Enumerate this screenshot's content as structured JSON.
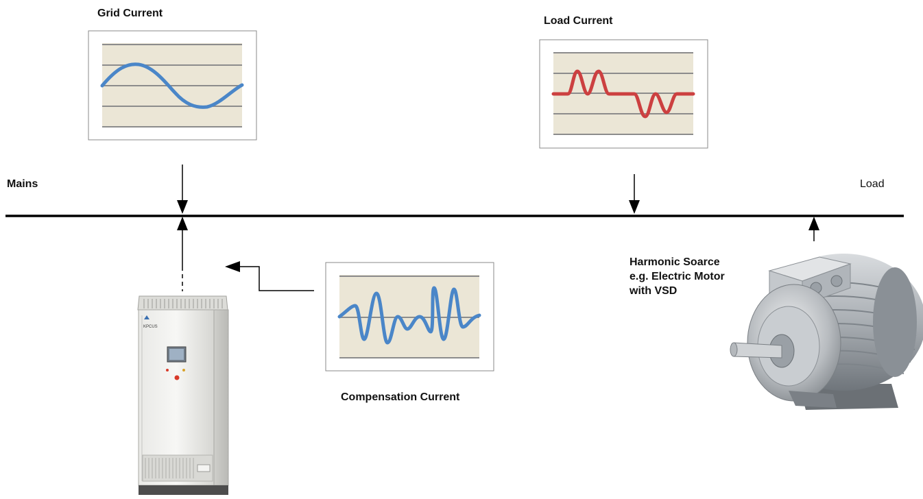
{
  "labels": {
    "grid_current": "Grid Current",
    "load_current": "Load Current",
    "mains": "Mains",
    "load": "Load",
    "harmonic_source_line1": "Harmonic Soarce",
    "harmonic_source_line2": "e.g. Electric Motor",
    "harmonic_source_line3": "with VSD",
    "compensation_current": "Compensation Current"
  },
  "filter_cabinet": {
    "logo_text": "KPCUS"
  },
  "colors": {
    "plot_background": "#ebe6d6",
    "gridline": "#8c8c8c",
    "grid_wave": "#4a86c8",
    "load_wave": "#cc4040",
    "compensation_wave": "#4a86c8",
    "bus_line": "#000000"
  }
}
